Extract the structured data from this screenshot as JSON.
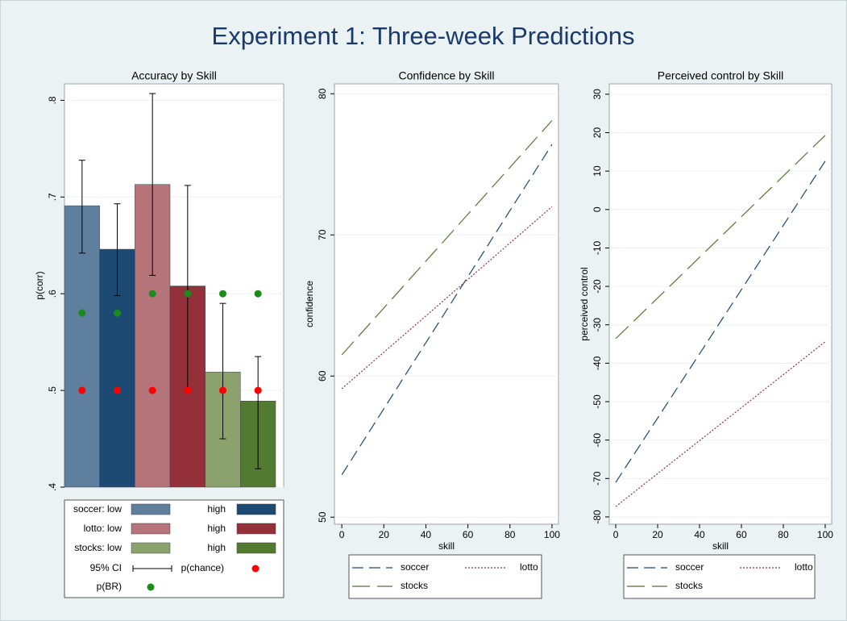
{
  "title": "Experiment 1: Three-week Predictions",
  "chart_data": [
    {
      "type": "bar",
      "title": "Accuracy by Skill",
      "y_label": "p(corr)",
      "categories": [
        "soccer: low",
        "high",
        "lotto: low",
        "high",
        "stocks: low",
        "high"
      ],
      "colors": [
        "#5f7f9f",
        "#1d4a72",
        "#b5737a",
        "#93303a",
        "#8ca26d",
        "#537a31"
      ],
      "values": [
        0.691,
        0.646,
        0.713,
        0.608,
        0.519,
        0.489
      ],
      "ci_low": [
        0.642,
        0.598,
        0.619,
        0.499,
        0.45,
        0.419
      ],
      "ci_high": [
        0.738,
        0.693,
        0.807,
        0.712,
        0.59,
        0.535
      ],
      "chance": [
        0.5,
        0.5,
        0.5,
        0.5,
        0.5,
        0.5
      ],
      "br": [
        0.58,
        0.58,
        0.6,
        0.6,
        0.6,
        0.6
      ],
      "ci_label": "95% CI",
      "chance_label": "p(chance)",
      "br_label": "p(BR)",
      "chance_color": "#ff0000",
      "br_color": "#1a8c1a",
      "ylim": [
        0.4,
        0.817
      ],
      "yticks": [
        {
          "value": 0.4,
          "label": ".4"
        },
        {
          "value": 0.5,
          "label": ".5"
        },
        {
          "value": 0.6,
          "label": ".6"
        },
        {
          "value": 0.7,
          "label": ".7"
        },
        {
          "value": 0.8,
          "label": ".8"
        }
      ],
      "grid": true
    },
    {
      "type": "line",
      "title": "Confidence by Skill",
      "x_label": "skill",
      "y_label": "confidence",
      "x": [
        0,
        100
      ],
      "series": [
        {
          "name": "soccer",
          "color": "#1a476f",
          "style": "dash",
          "values": [
            53.0,
            76.4
          ]
        },
        {
          "name": "lotto",
          "color": "#90353b",
          "style": "dot",
          "values": [
            59.1,
            72.0
          ]
        },
        {
          "name": "stocks",
          "color": "#55752f",
          "style": "longdash",
          "values": [
            61.5,
            78.1
          ]
        }
      ],
      "xlim": [
        -3.5,
        103.1
      ],
      "xticks": [
        0,
        20,
        40,
        60,
        80,
        100
      ],
      "ylim": [
        49.5,
        80.7
      ],
      "yticks": [
        50,
        60,
        70,
        80
      ],
      "grid": true
    },
    {
      "type": "line",
      "title": "Perceived control by Skill",
      "x_label": "skill",
      "y_label": "perceived control",
      "x": [
        0,
        100
      ],
      "series": [
        {
          "name": "soccer",
          "color": "#1a476f",
          "style": "dash",
          "values": [
            -71.0,
            12.6
          ]
        },
        {
          "name": "lotto",
          "color": "#90353b",
          "style": "dot",
          "values": [
            -77.3,
            -34.4
          ]
        },
        {
          "name": "stocks",
          "color": "#55752f",
          "style": "longdash",
          "values": [
            -33.6,
            19.3
          ]
        }
      ],
      "xlim": [
        -3.1,
        103.1
      ],
      "xticks": [
        0,
        20,
        40,
        60,
        80,
        100
      ],
      "ylim": [
        -81.9,
        32.7
      ],
      "yticks": [
        -80,
        -70,
        -60,
        -50,
        -40,
        -30,
        -20,
        -10,
        0,
        10,
        20,
        30
      ],
      "grid": true
    }
  ]
}
